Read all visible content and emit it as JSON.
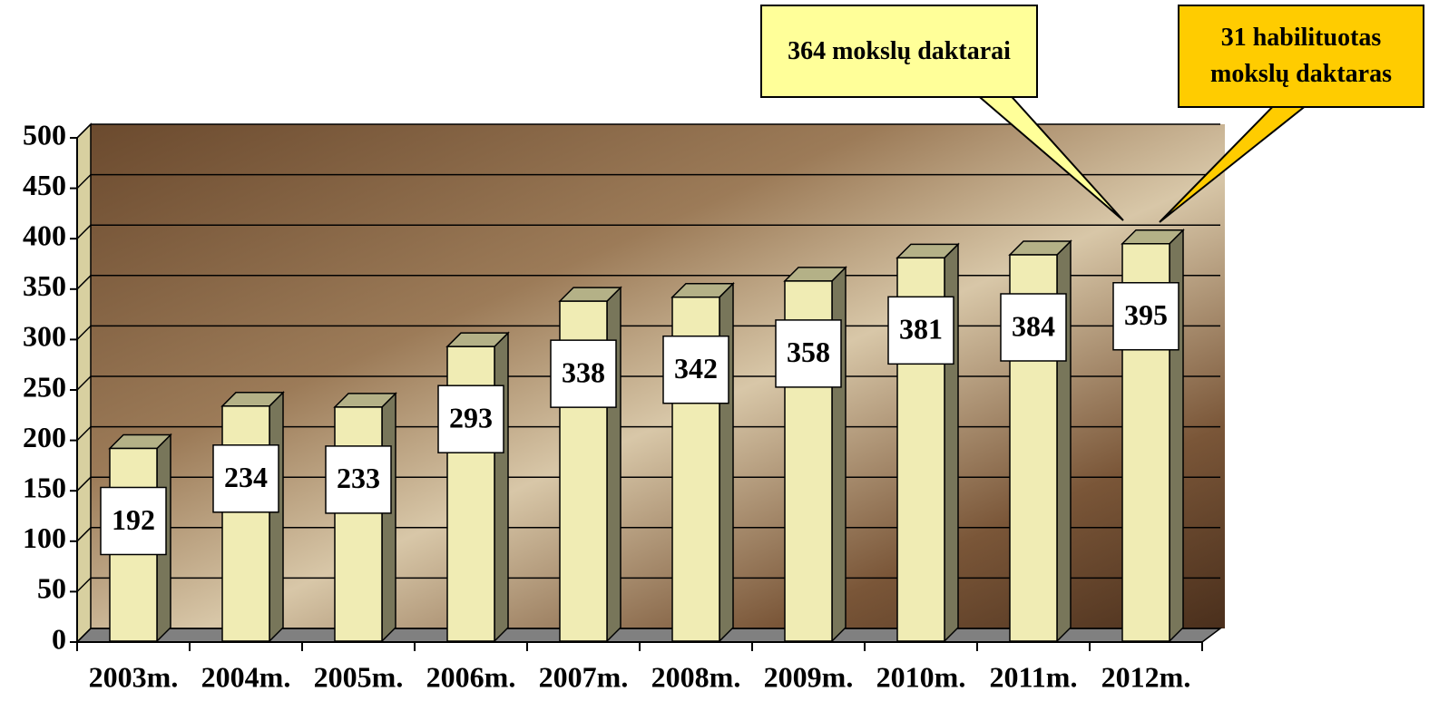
{
  "chart_data": {
    "type": "bar3d",
    "categories": [
      "2003m.",
      "2004m.",
      "2005m.",
      "2006m.",
      "2007m.",
      "2008m.",
      "2009m.",
      "2010m.",
      "2011m.",
      "2012m."
    ],
    "values": [
      192,
      234,
      233,
      293,
      338,
      342,
      358,
      381,
      384,
      395
    ],
    "color": "#f0ecb4",
    "ylim": [
      0,
      500
    ],
    "yticks": [
      0,
      50,
      100,
      150,
      200,
      250,
      300,
      350,
      400,
      450,
      500
    ],
    "grid": true,
    "annotations": [
      {
        "text": "364 mokslų daktarai",
        "color": "#ffff99"
      },
      {
        "text": "31 habilituotas mokslų daktaras",
        "color": "#ffcc00"
      }
    ]
  }
}
